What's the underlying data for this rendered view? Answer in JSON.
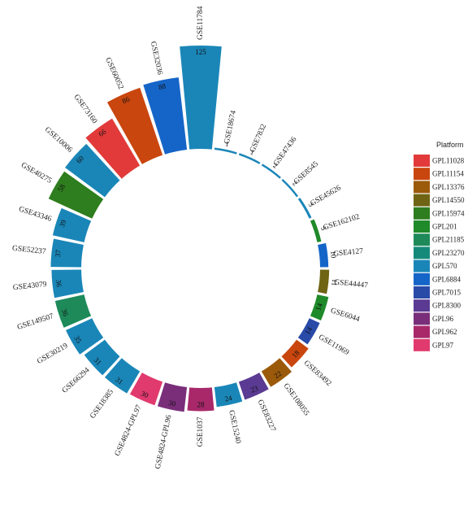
{
  "chart_data": {
    "type": "bar",
    "coordinate_system": "polar",
    "categories": [
      "GSE11784",
      "GSE18674",
      "GSE7832",
      "GSE47436",
      "GSE8545",
      "GSE45626",
      "GSE162102",
      "GSE4127",
      "GSE44447",
      "GSE6044",
      "GSE11969",
      "GSE83492",
      "GSE108055",
      "GSE83227",
      "GSE15240",
      "GSE1037",
      "GSE4824-GPL96",
      "GSE4824-GPL97",
      "GSE18385",
      "GSE66294",
      "GSE30219",
      "GSE149507",
      "GSE43079",
      "GSE52237",
      "GSE43346",
      "GSE40275",
      "GSE10006",
      "GSE73160",
      "GSE60052",
      "GSE32036"
    ],
    "values": [
      125,
      1,
      1,
      2,
      2,
      3,
      5,
      10,
      11,
      14,
      14,
      18,
      22,
      23,
      24,
      28,
      30,
      30,
      31,
      31,
      35,
      36,
      36,
      37,
      39,
      58,
      60,
      66,
      86,
      88
    ],
    "platforms": [
      "GPL570",
      "GPL570",
      "GPL570",
      "GPL570",
      "GPL570",
      "GPL570",
      "GPL201",
      "GPL6884",
      "GPL14550",
      "GPL201",
      "GPL7015",
      "GPL11154",
      "GPL13376",
      "GPL8300",
      "GPL570",
      "GPL962",
      "GPL96",
      "GPL97",
      "GPL570",
      "GPL570",
      "GPL570",
      "GPL21185",
      "GPL570",
      "GPL570",
      "GPL570",
      "GPL15974",
      "GPL570",
      "GPL11028",
      "GPL11154",
      "GPL6884"
    ],
    "legend": {
      "title": "Platform",
      "position": "right",
      "entries": [
        {
          "name": "GPL11028",
          "color": "#E23A3A"
        },
        {
          "name": "GPL11154",
          "color": "#C9460E"
        },
        {
          "name": "GPL13376",
          "color": "#9B5A0A"
        },
        {
          "name": "GPL14550",
          "color": "#6E6414"
        },
        {
          "name": "GPL15974",
          "color": "#2E7D1E"
        },
        {
          "name": "GPL201",
          "color": "#1F8A2A"
        },
        {
          "name": "GPL21185",
          "color": "#1E8A5A"
        },
        {
          "name": "GPL23270",
          "color": "#168A7A"
        },
        {
          "name": "GPL570",
          "color": "#1A86B8"
        },
        {
          "name": "GPL6884",
          "color": "#1565C8"
        },
        {
          "name": "GPL7015",
          "color": "#2A4AA8"
        },
        {
          "name": "GPL8300",
          "color": "#5A3A92"
        },
        {
          "name": "GPL96",
          "color": "#7A2E7A"
        },
        {
          "name": "GPL962",
          "color": "#A8286A"
        },
        {
          "name": "GPL97",
          "color": "#E03A6E"
        }
      ]
    },
    "grid": false
  }
}
